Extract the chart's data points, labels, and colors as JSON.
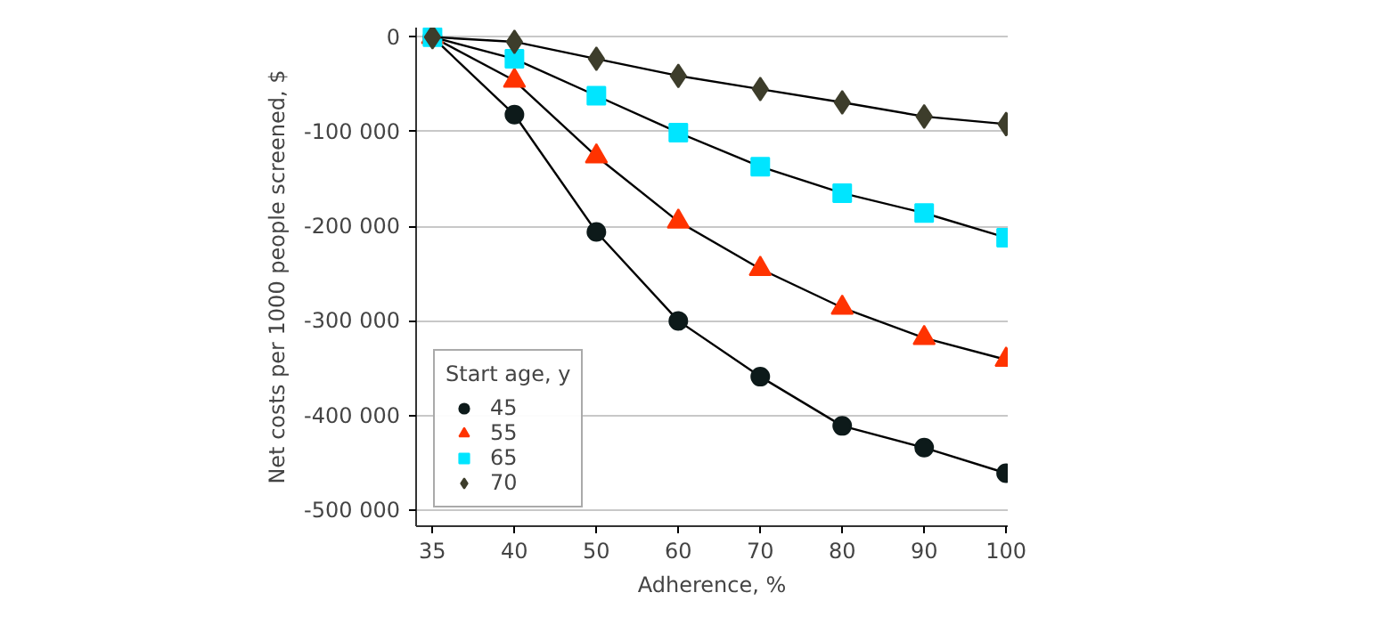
{
  "chart_data": {
    "type": "line",
    "xlabel": "Adherence, %",
    "ylabel": "Net costs per 1000 people screened, $",
    "legend_title": "Start age, y",
    "legend": "bottom left",
    "grid": "y",
    "categories": [
      "35",
      "40",
      "50",
      "60",
      "70",
      "80",
      "90",
      "100"
    ],
    "ylim": [
      -517000,
      10000
    ],
    "yticks": [
      {
        "value": 0,
        "label": "0"
      },
      {
        "value": -100000,
        "label": "-100 000"
      },
      {
        "value": -200000,
        "label": "-200 000"
      },
      {
        "value": -300000,
        "label": "-300 000"
      },
      {
        "value": -400000,
        "label": "-400 000"
      },
      {
        "value": -500000,
        "label": "-500 000"
      }
    ],
    "series": [
      {
        "name": "45",
        "color": "#0d1a1a",
        "marker": "circle",
        "values": [
          0,
          -82000,
          -206000,
          -300000,
          -359000,
          -411000,
          -434000,
          -461000
        ]
      },
      {
        "name": "55",
        "color": "#ff3300",
        "marker": "triangle",
        "values": [
          0,
          -46000,
          -126000,
          -195000,
          -245000,
          -286000,
          -318000,
          -341000
        ]
      },
      {
        "name": "65",
        "color": "#00e5ff",
        "marker": "square",
        "values": [
          0,
          -23000,
          -62000,
          -101000,
          -137000,
          -165000,
          -186000,
          -212000
        ]
      },
      {
        "name": "70",
        "color": "#3d3d2b",
        "marker": "diamond",
        "values": [
          0,
          -5000,
          -23000,
          -41000,
          -55000,
          -69000,
          -84000,
          -92000
        ]
      }
    ]
  }
}
